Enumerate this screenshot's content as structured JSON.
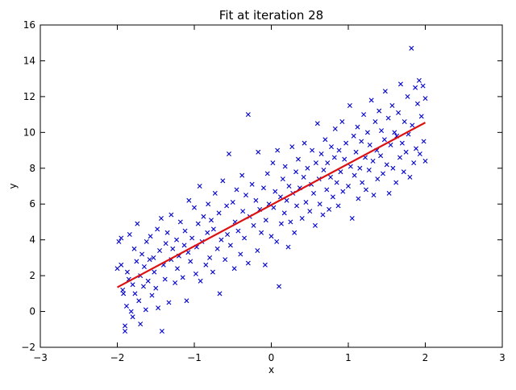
{
  "chart_data": {
    "type": "scatter",
    "title": "Fit at iteration 28",
    "xlabel": "x",
    "ylabel": "y",
    "xlim": [
      -3,
      3
    ],
    "ylim": [
      -2,
      16
    ],
    "xticks": [
      -3,
      -2,
      -1,
      0,
      1,
      2,
      3
    ],
    "yticks": [
      -2,
      0,
      2,
      4,
      6,
      8,
      10,
      12,
      14,
      16
    ],
    "xtick_labels": [
      "−3",
      "−2",
      "−1",
      "0",
      "1",
      "2",
      "3"
    ],
    "ytick_labels": [
      "−2",
      "0",
      "2",
      "4",
      "6",
      "8",
      "10",
      "12",
      "14",
      "16"
    ],
    "grid": false,
    "series": [
      {
        "marker": "x",
        "color": "#0000cc",
        "points": [
          [
            -2.0,
            2.4
          ],
          [
            -1.98,
            3.9
          ],
          [
            -1.95,
            4.1
          ],
          [
            -1.95,
            2.6
          ],
          [
            -1.93,
            1.2
          ],
          [
            -1.92,
            1.0
          ],
          [
            -1.9,
            -1.1
          ],
          [
            -1.9,
            -0.8
          ],
          [
            -1.88,
            0.3
          ],
          [
            -1.87,
            2.2
          ],
          [
            -1.85,
            1.8
          ],
          [
            -1.84,
            4.3
          ],
          [
            -1.82,
            0.0
          ],
          [
            -1.8,
            1.5
          ],
          [
            -1.8,
            -0.3
          ],
          [
            -1.78,
            3.5
          ],
          [
            -1.77,
            1.0
          ],
          [
            -1.75,
            2.8
          ],
          [
            -1.74,
            4.9
          ],
          [
            -1.72,
            0.6
          ],
          [
            -1.7,
            -0.7
          ],
          [
            -1.7,
            2.0
          ],
          [
            -1.68,
            3.2
          ],
          [
            -1.66,
            1.4
          ],
          [
            -1.65,
            2.5
          ],
          [
            -1.63,
            0.1
          ],
          [
            -1.62,
            3.9
          ],
          [
            -1.6,
            1.7
          ],
          [
            -1.58,
            2.9
          ],
          [
            -1.57,
            4.2
          ],
          [
            -1.55,
            0.9
          ],
          [
            -1.53,
            3.0
          ],
          [
            -1.52,
            2.2
          ],
          [
            -1.5,
            1.3
          ],
          [
            -1.48,
            4.6
          ],
          [
            -1.47,
            0.2
          ],
          [
            -1.45,
            3.4
          ],
          [
            -1.43,
            5.2
          ],
          [
            -1.42,
            -1.1
          ],
          [
            -1.4,
            2.6
          ],
          [
            -1.38,
            1.8
          ],
          [
            -1.37,
            3.8
          ],
          [
            -1.35,
            4.4
          ],
          [
            -1.33,
            0.5
          ],
          [
            -1.3,
            2.9
          ],
          [
            -1.3,
            5.4
          ],
          [
            -1.28,
            3.5
          ],
          [
            -1.25,
            1.6
          ],
          [
            -1.23,
            4.0
          ],
          [
            -1.22,
            2.4
          ],
          [
            -1.2,
            3.1
          ],
          [
            -1.18,
            5.0
          ],
          [
            -1.15,
            1.9
          ],
          [
            -1.13,
            3.7
          ],
          [
            -1.12,
            4.5
          ],
          [
            -1.1,
            0.6
          ],
          [
            -1.08,
            3.3
          ],
          [
            -1.07,
            6.2
          ],
          [
            -1.05,
            2.8
          ],
          [
            -1.03,
            4.1
          ],
          [
            -1.0,
            5.8
          ],
          [
            -0.98,
            2.1
          ],
          [
            -0.97,
            3.6
          ],
          [
            -0.95,
            4.9
          ],
          [
            -0.93,
            7.0
          ],
          [
            -0.92,
            1.7
          ],
          [
            -0.9,
            3.9
          ],
          [
            -0.88,
            5.3
          ],
          [
            -0.85,
            2.6
          ],
          [
            -0.83,
            4.4
          ],
          [
            -0.82,
            6.0
          ],
          [
            -0.8,
            3.0
          ],
          [
            -0.78,
            5.1
          ],
          [
            -0.76,
            2.2
          ],
          [
            -0.75,
            4.6
          ],
          [
            -0.73,
            6.6
          ],
          [
            -0.7,
            3.5
          ],
          [
            -0.68,
            5.5
          ],
          [
            -0.67,
            1.0
          ],
          [
            -0.65,
            4.0
          ],
          [
            -0.63,
            7.3
          ],
          [
            -0.6,
            2.9
          ],
          [
            -0.58,
            5.9
          ],
          [
            -0.57,
            4.3
          ],
          [
            -0.55,
            8.8
          ],
          [
            -0.53,
            3.7
          ],
          [
            -0.5,
            6.1
          ],
          [
            -0.48,
            2.4
          ],
          [
            -0.47,
            5.0
          ],
          [
            -0.45,
            6.8
          ],
          [
            -0.43,
            4.5
          ],
          [
            -0.4,
            3.2
          ],
          [
            -0.38,
            7.6
          ],
          [
            -0.37,
            5.6
          ],
          [
            -0.35,
            4.1
          ],
          [
            -0.33,
            6.5
          ],
          [
            -0.3,
            11.0
          ],
          [
            -0.3,
            2.7
          ],
          [
            -0.28,
            5.3
          ],
          [
            -0.25,
            7.1
          ],
          [
            -0.23,
            4.8
          ],
          [
            -0.2,
            6.2
          ],
          [
            -0.18,
            3.4
          ],
          [
            -0.17,
            8.9
          ],
          [
            -0.15,
            5.7
          ],
          [
            -0.13,
            4.4
          ],
          [
            -0.1,
            6.9
          ],
          [
            -0.08,
            2.6
          ],
          [
            -0.07,
            5.1
          ],
          [
            -0.05,
            7.7
          ],
          [
            -0.03,
            6.0
          ],
          [
            0.0,
            4.2
          ],
          [
            0.02,
            8.3
          ],
          [
            0.03,
            5.8
          ],
          [
            0.05,
            6.7
          ],
          [
            0.07,
            3.9
          ],
          [
            0.08,
            9.0
          ],
          [
            0.1,
            1.4
          ],
          [
            0.12,
            6.4
          ],
          [
            0.13,
            4.9
          ],
          [
            0.15,
            7.4
          ],
          [
            0.17,
            5.5
          ],
          [
            0.18,
            8.1
          ],
          [
            0.2,
            6.2
          ],
          [
            0.22,
            3.6
          ],
          [
            0.23,
            7.0
          ],
          [
            0.25,
            5.0
          ],
          [
            0.27,
            9.2
          ],
          [
            0.28,
            6.6
          ],
          [
            0.3,
            4.4
          ],
          [
            0.32,
            7.8
          ],
          [
            0.33,
            5.9
          ],
          [
            0.35,
            8.5
          ],
          [
            0.37,
            6.9
          ],
          [
            0.4,
            5.2
          ],
          [
            0.42,
            7.5
          ],
          [
            0.43,
            9.4
          ],
          [
            0.45,
            6.1
          ],
          [
            0.47,
            8.0
          ],
          [
            0.5,
            5.6
          ],
          [
            0.52,
            7.1
          ],
          [
            0.53,
            9.0
          ],
          [
            0.55,
            6.6
          ],
          [
            0.57,
            4.8
          ],
          [
            0.58,
            8.3
          ],
          [
            0.6,
            10.5
          ],
          [
            0.62,
            7.4
          ],
          [
            0.63,
            6.0
          ],
          [
            0.65,
            8.8
          ],
          [
            0.67,
            5.4
          ],
          [
            0.68,
            7.9
          ],
          [
            0.7,
            9.6
          ],
          [
            0.72,
            6.8
          ],
          [
            0.73,
            8.3
          ],
          [
            0.75,
            5.7
          ],
          [
            0.77,
            7.5
          ],
          [
            0.78,
            9.2
          ],
          [
            0.8,
            6.4
          ],
          [
            0.82,
            8.6
          ],
          [
            0.83,
            10.2
          ],
          [
            0.85,
            7.2
          ],
          [
            0.87,
            5.9
          ],
          [
            0.88,
            9.0
          ],
          [
            0.9,
            7.8
          ],
          [
            0.92,
            10.6
          ],
          [
            0.93,
            6.7
          ],
          [
            0.95,
            8.5
          ],
          [
            0.97,
            9.4
          ],
          [
            1.0,
            7.0
          ],
          [
            1.02,
            11.5
          ],
          [
            1.03,
            8.1
          ],
          [
            1.05,
            5.2
          ],
          [
            1.07,
            9.8
          ],
          [
            1.08,
            7.6
          ],
          [
            1.1,
            8.9
          ],
          [
            1.12,
            10.3
          ],
          [
            1.13,
            6.3
          ],
          [
            1.15,
            8.0
          ],
          [
            1.17,
            9.5
          ],
          [
            1.18,
            7.2
          ],
          [
            1.2,
            11.0
          ],
          [
            1.22,
            8.6
          ],
          [
            1.23,
            6.8
          ],
          [
            1.25,
            10.0
          ],
          [
            1.27,
            7.9
          ],
          [
            1.28,
            9.3
          ],
          [
            1.3,
            11.8
          ],
          [
            1.32,
            8.4
          ],
          [
            1.33,
            6.5
          ],
          [
            1.35,
            10.6
          ],
          [
            1.37,
            9.0
          ],
          [
            1.38,
            7.4
          ],
          [
            1.4,
            11.2
          ],
          [
            1.42,
            8.7
          ],
          [
            1.43,
            10.1
          ],
          [
            1.45,
            7.7
          ],
          [
            1.47,
            9.6
          ],
          [
            1.48,
            12.3
          ],
          [
            1.5,
            8.2
          ],
          [
            1.52,
            10.8
          ],
          [
            1.53,
            6.6
          ],
          [
            1.55,
            9.3
          ],
          [
            1.57,
            11.5
          ],
          [
            1.58,
            8.0
          ],
          [
            1.6,
            10.0
          ],
          [
            1.62,
            7.2
          ],
          [
            1.63,
            9.8
          ],
          [
            1.65,
            11.1
          ],
          [
            1.67,
            8.6
          ],
          [
            1.68,
            12.7
          ],
          [
            1.7,
            9.4
          ],
          [
            1.72,
            7.8
          ],
          [
            1.73,
            10.6
          ],
          [
            1.75,
            8.9
          ],
          [
            1.77,
            12.0
          ],
          [
            1.78,
            9.9
          ],
          [
            1.8,
            7.5
          ],
          [
            1.82,
            14.7
          ],
          [
            1.83,
            10.4
          ],
          [
            1.85,
            8.3
          ],
          [
            1.87,
            12.5
          ],
          [
            1.88,
            9.1
          ],
          [
            1.9,
            11.6
          ],
          [
            1.92,
            12.9
          ],
          [
            1.93,
            8.8
          ],
          [
            1.95,
            10.9
          ],
          [
            1.97,
            12.6
          ],
          [
            1.98,
            9.5
          ],
          [
            2.0,
            8.4
          ],
          [
            2.0,
            11.9
          ]
        ]
      },
      {
        "type": "line",
        "color": "#dd1111",
        "x": [
          -2,
          2
        ],
        "y": [
          1.35,
          10.55
        ]
      }
    ]
  }
}
